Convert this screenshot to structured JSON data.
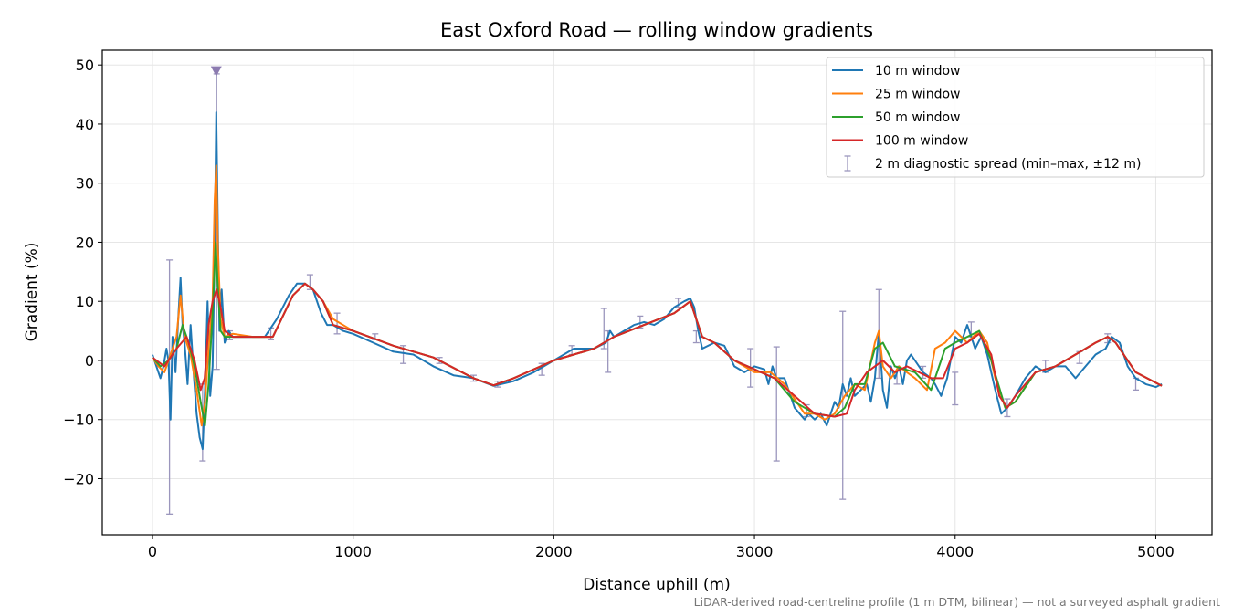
{
  "chart_data": {
    "type": "line",
    "title": "East Oxford Road — rolling window gradients",
    "xlabel": "Distance uphill (m)",
    "ylabel": "Gradient (%)",
    "footnote": "LiDAR-derived road-centreline profile (1 m DTM, bilinear) — not a surveyed asphalt gradient",
    "xlim": [
      -250,
      5280
    ],
    "ylim": [
      -29.5,
      52.5
    ],
    "xticks": [
      0,
      1000,
      2000,
      3000,
      4000,
      5000
    ],
    "xtick_labels": [
      "0",
      "1000",
      "2000",
      "3000",
      "4000",
      "5000"
    ],
    "yticks": [
      -20,
      -10,
      0,
      10,
      20,
      30,
      40,
      50
    ],
    "ytick_labels": [
      "−20",
      "−10",
      "0",
      "10",
      "20",
      "30",
      "40",
      "50"
    ],
    "grid": true,
    "legend_position": "top-right",
    "series": [
      {
        "name": "10 m window",
        "color": "#1f77b4",
        "x": [
          0,
          20,
          40,
          55,
          70,
          80,
          90,
          100,
          115,
          130,
          140,
          150,
          160,
          175,
          190,
          205,
          220,
          235,
          250,
          262,
          275,
          288,
          300,
          310,
          318,
          326,
          334,
          345,
          360,
          380,
          400,
          450,
          500,
          560,
          620,
          680,
          720,
          760,
          800,
          840,
          870,
          900,
          950,
          1000,
          1100,
          1200,
          1300,
          1400,
          1500,
          1600,
          1700,
          1800,
          1900,
          2000,
          2100,
          2200,
          2260,
          2280,
          2300,
          2350,
          2400,
          2450,
          2500,
          2550,
          2600,
          2650,
          2680,
          2700,
          2720,
          2740,
          2800,
          2850,
          2900,
          2950,
          3000,
          3050,
          3070,
          3090,
          3110,
          3150,
          3200,
          3250,
          3270,
          3300,
          3330,
          3360,
          3400,
          3420,
          3440,
          3460,
          3480,
          3500,
          3530,
          3560,
          3580,
          3600,
          3620,
          3640,
          3660,
          3680,
          3700,
          3720,
          3740,
          3760,
          3780,
          3800,
          3840,
          3880,
          3900,
          3930,
          3960,
          4000,
          4030,
          4060,
          4100,
          4130,
          4160,
          4200,
          4230,
          4260,
          4300,
          4350,
          4400,
          4450,
          4500,
          4550,
          4600,
          4650,
          4700,
          4750,
          4780,
          4820,
          4860,
          4900,
          4950,
          5000,
          5030
        ],
        "values": [
          1,
          -1,
          -3,
          -1,
          2,
          0,
          -10,
          4,
          -2,
          8,
          14,
          6,
          3,
          -4,
          6,
          -2,
          -9,
          -13,
          -15,
          -5,
          10,
          -6,
          -1,
          18,
          42,
          22,
          5,
          12,
          3,
          5,
          4,
          4,
          4,
          4,
          7,
          11,
          13,
          13,
          12,
          8,
          6,
          6,
          5,
          4.5,
          3,
          1.5,
          1,
          -1,
          -2.5,
          -3,
          -4.3,
          -3.5,
          -2,
          0,
          2,
          2,
          3,
          5,
          4,
          5,
          6,
          6.5,
          6,
          7,
          9,
          10,
          10.5,
          9,
          5,
          2,
          3,
          2.5,
          -1,
          -2,
          -1,
          -1.5,
          -4,
          -1,
          -3,
          -3,
          -8,
          -10,
          -9,
          -10,
          -9,
          -11,
          -7,
          -8,
          -4,
          -6,
          -3,
          -6,
          -5,
          -4,
          -7,
          -3,
          5,
          -5,
          -8,
          -1,
          -3,
          -1,
          -4,
          0,
          1,
          0,
          -2,
          -3,
          -4,
          -6,
          -3,
          4,
          3,
          6,
          2,
          4,
          1,
          -5,
          -9,
          -8,
          -6,
          -3,
          -1,
          -2,
          -1,
          -1,
          -3,
          -1,
          1,
          2,
          4,
          3,
          -1,
          -3,
          -4,
          -4.5,
          -4
        ]
      },
      {
        "name": "25 m window",
        "color": "#ff7f0e",
        "x": [
          0,
          30,
          60,
          90,
          120,
          140,
          160,
          190,
          220,
          245,
          262,
          280,
          300,
          310,
          318,
          326,
          340,
          360,
          400,
          500,
          600,
          700,
          760,
          800,
          850,
          900,
          1000,
          1200,
          1400,
          1600,
          1700,
          1800,
          2000,
          2200,
          2300,
          2450,
          2600,
          2680,
          2740,
          2800,
          2900,
          3000,
          3080,
          3150,
          3250,
          3300,
          3350,
          3400,
          3450,
          3500,
          3550,
          3600,
          3620,
          3640,
          3680,
          3720,
          3760,
          3800,
          3860,
          3900,
          3950,
          4000,
          4060,
          4120,
          4160,
          4200,
          4250,
          4300,
          4400,
          4500,
          4600,
          4700,
          4760,
          4800,
          4900,
          5030
        ],
        "values": [
          0.5,
          -1,
          -2,
          1,
          4,
          11,
          4,
          1,
          -5,
          -11,
          -7,
          2,
          10,
          27,
          33,
          19,
          7,
          4,
          4.5,
          4,
          4,
          11,
          13,
          12,
          10,
          7,
          5,
          2.5,
          0.5,
          -3,
          -4.2,
          -3,
          0,
          2,
          4,
          6,
          8,
          10,
          4,
          3,
          0,
          -2,
          -2,
          -4,
          -9,
          -9,
          -10,
          -9,
          -6,
          -4,
          -5,
          3,
          5,
          -1,
          -3,
          -1,
          -2,
          -3,
          -5,
          2,
          3,
          5,
          3,
          5,
          3,
          -3,
          -8,
          -7,
          -2,
          -1,
          1,
          3,
          4,
          3,
          -2,
          -4.3
        ]
      },
      {
        "name": "50 m window",
        "color": "#2ca02c",
        "x": [
          0,
          40,
          80,
          120,
          150,
          180,
          210,
          240,
          262,
          280,
          300,
          315,
          325,
          340,
          360,
          400,
          500,
          600,
          700,
          760,
          800,
          850,
          900,
          1000,
          1200,
          1400,
          1600,
          1700,
          1800,
          2000,
          2200,
          2300,
          2450,
          2600,
          2680,
          2740,
          2800,
          2900,
          3000,
          3100,
          3200,
          3300,
          3400,
          3450,
          3500,
          3550,
          3600,
          3640,
          3700,
          3800,
          3880,
          3950,
          4000,
          4060,
          4120,
          4180,
          4250,
          4300,
          4400,
          4500,
          4600,
          4700,
          4760,
          4800,
          4900,
          5030
        ],
        "values": [
          0.5,
          -1,
          0,
          2,
          6,
          3,
          -1,
          -7,
          -11,
          -4,
          8,
          20,
          13,
          5,
          4,
          4,
          4,
          4,
          11,
          13,
          12,
          10,
          6,
          5,
          2.5,
          0.5,
          -3,
          -4.2,
          -3,
          0,
          2,
          4,
          6,
          8,
          10,
          4,
          3,
          0,
          -1.5,
          -3,
          -7,
          -9,
          -9.5,
          -8,
          -4,
          -4,
          2,
          3,
          -1,
          -2,
          -5,
          2,
          3,
          4,
          5,
          0,
          -8,
          -7,
          -2,
          -1,
          1,
          3,
          4,
          3,
          -2,
          -4.3
        ]
      },
      {
        "name": "100 m window",
        "color": "#d62728",
        "x": [
          0,
          60,
          120,
          170,
          210,
          240,
          260,
          280,
          300,
          320,
          340,
          360,
          400,
          500,
          600,
          700,
          760,
          800,
          850,
          900,
          1000,
          1200,
          1400,
          1600,
          1700,
          1800,
          2000,
          2200,
          2300,
          2450,
          2600,
          2680,
          2740,
          2800,
          2900,
          3000,
          3100,
          3200,
          3300,
          3400,
          3460,
          3500,
          3560,
          3600,
          3640,
          3700,
          3760,
          3820,
          3880,
          3940,
          4000,
          4060,
          4120,
          4180,
          4220,
          4260,
          4300,
          4400,
          4500,
          4600,
          4700,
          4760,
          4800,
          4900,
          5030
        ],
        "values": [
          0.5,
          -1,
          2,
          4,
          0,
          -5,
          -3,
          6,
          10,
          12,
          9,
          5,
          4,
          4,
          4,
          11,
          13,
          12,
          10,
          6,
          5,
          2.5,
          0.5,
          -3,
          -4.2,
          -3,
          0,
          2,
          4,
          6,
          8,
          10,
          4,
          3,
          0,
          -1.5,
          -3,
          -6,
          -9,
          -9.5,
          -9,
          -5,
          -2,
          -1,
          0,
          -2,
          -1,
          -2,
          -3,
          -3,
          2,
          3,
          4.5,
          1,
          -6,
          -8,
          -6,
          -2,
          -1,
          1,
          3,
          4,
          3,
          -2,
          -4.3
        ]
      }
    ],
    "error_bars": {
      "name": "2 m diagnostic spread (min–max, ±12 m)",
      "color": "#9b96bd",
      "x": [
        85,
        250,
        320,
        385,
        590,
        785,
        920,
        1110,
        1250,
        1430,
        1600,
        1720,
        1940,
        2090,
        2250,
        2270,
        2430,
        2620,
        2710,
        2980,
        3110,
        3260,
        3440,
        3620,
        3710,
        3840,
        4000,
        4080,
        4260,
        4450,
        4620,
        4760,
        4900
      ],
      "y": [
        1,
        -5,
        4.5,
        4,
        4.5,
        13,
        6,
        4,
        1,
        0,
        -3,
        -4,
        -1.5,
        1.5,
        4,
        1.5,
        6.5,
        9.5,
        4,
        -2,
        -8,
        -8.5,
        -8,
        4,
        -2,
        -2,
        -4.5,
        5,
        -7.5,
        -1,
        0.5,
        3.5,
        -4
      ],
      "min": [
        -26,
        -17,
        -1.5,
        3.5,
        3.5,
        12,
        4.5,
        3.5,
        -0.5,
        -0.5,
        -3.5,
        -4.5,
        -2.5,
        1,
        2,
        -2,
        5.5,
        9,
        3,
        -4.5,
        -17,
        -9.5,
        -23.5,
        -3,
        -4,
        -3,
        -7.5,
        4,
        -9.5,
        -2,
        -0.5,
        3,
        -5
      ],
      "max": [
        17,
        -4,
        48.5,
        5,
        5.5,
        14.5,
        8,
        4.5,
        2.5,
        0.5,
        -2.5,
        -3.5,
        -0.5,
        2.5,
        8.8,
        5,
        7.5,
        10.5,
        5,
        2,
        2.3,
        -7.5,
        8.3,
        12,
        -1,
        -1,
        -2,
        6.5,
        -6.5,
        0,
        1.5,
        4.5,
        -3
      ],
      "peak_marker": {
        "x": 318,
        "y": 49
      }
    }
  }
}
